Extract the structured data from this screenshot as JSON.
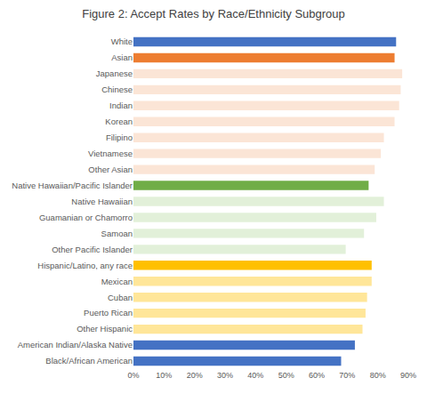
{
  "chart_data": {
    "type": "bar",
    "title": "Figure 2: Accept Rates by Race/Ethnicity Subgroup",
    "orientation": "horizontal",
    "categories": [
      "White",
      "Asian",
      "Japanese",
      "Chinese",
      "Indian",
      "Korean",
      "Filipino",
      "Vietnamese",
      "Other Asian",
      "Native Hawaiian/Pacific Islander",
      "Native Hawaiian",
      "Guamanian or Chamorro",
      "Samoan",
      "Other Pacific Islander",
      "Hispanic/Latino, any race",
      "Mexican",
      "Cuban",
      "Puerto Rican",
      "Other Hispanic",
      "American Indian/Alaska Native",
      "Black/African American"
    ],
    "values": [
      86,
      85.5,
      88,
      87.5,
      87,
      85.5,
      82,
      81,
      79,
      77,
      82,
      79.5,
      75.5,
      69.5,
      78,
      78,
      76.5,
      76,
      75,
      72.5,
      68
    ],
    "colors": [
      "#4472c4",
      "#ed7d31",
      "#fbe5d6",
      "#fbe5d6",
      "#fbe5d6",
      "#fbe5d6",
      "#fbe5d6",
      "#fbe5d6",
      "#fbe5d6",
      "#70ad47",
      "#e2f0d9",
      "#e2f0d9",
      "#e2f0d9",
      "#e2f0d9",
      "#ffc000",
      "#ffe699",
      "#ffe699",
      "#ffe699",
      "#ffe699",
      "#4472c4",
      "#4472c4"
    ],
    "xlim": [
      0,
      90
    ],
    "xticks": [
      {
        "value": 0,
        "label": "0%"
      },
      {
        "value": 10,
        "label": "10%"
      },
      {
        "value": 20,
        "label": "20%"
      },
      {
        "value": 30,
        "label": "30%"
      },
      {
        "value": 40,
        "label": "40%"
      },
      {
        "value": 50,
        "label": "50%"
      },
      {
        "value": 60,
        "label": "60%"
      },
      {
        "value": 70,
        "label": "70%"
      },
      {
        "value": 80,
        "label": "80%"
      },
      {
        "value": 90,
        "label": "90%"
      }
    ],
    "grid": false
  }
}
